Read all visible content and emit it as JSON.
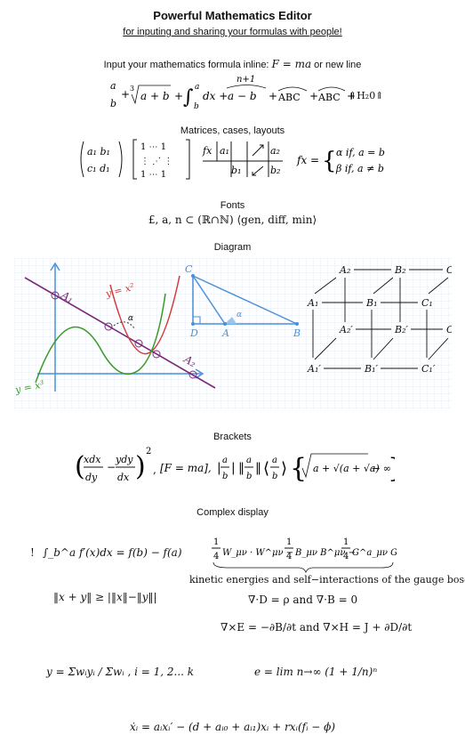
{
  "header": {
    "title": "Powerful Mathematics Editor",
    "subtitle": "for inputing and sharing your formulas with people!"
  },
  "inline": {
    "label": "Input your mathematics formula inline:",
    "tail": "or new line"
  },
  "sections": {
    "matrices": "Matrices, cases, layouts",
    "fonts": "Fonts",
    "diagram": "Diagram",
    "brackets": "Brackets",
    "complex": "Complex display"
  },
  "formulas": {
    "inline_formula": "F = ma",
    "row1": "a/b + ∛(a+b) + ∫_b^a dx + (a − b, n+1) + ABC + ABC + ⇑H₂0⇑",
    "fonts_line": "£, a, n ⊂ (ℝ∩ℕ) ⟨gen, diff, min⟩",
    "brackets_line": "(xdx/dy − ydy/dx)², [F = ma], |a/b| ‖a/b‖ ⟨a/b⟩ {√(a+√(a+√a)) → ∞}",
    "complex": {
      "bang": "!",
      "integral": "∫_b^a f′(x)dx = f(b) − f(a)",
      "gauge_caption": "kinetic energies and self−interactions of the gauge bosons",
      "triangle": "‖x + y‖ ≥ |‖x‖−‖y‖|",
      "div_line": "∇·D = ρ and ∇·B = 0",
      "curl_line": "∇×E = −∂B/∂t and ∇×H = J + ∂D/∂t",
      "weighted_mean": "y = Σwᵢyᵢ / Σwᵢ , i = 1, 2... k",
      "euler": "e = lim n→∞ (1 + 1/n)ⁿ",
      "ode": "ẋᵢ = aᵢxᵢ′ − (d + aᵢ₀ + aᵢ₁)xᵢ + rxᵢ(fᵢ − ϕ)"
    }
  },
  "diagram_labels": {
    "A1": "A₁",
    "A2": "A₂",
    "y_x2": "y = x²",
    "y_x3": "y = x³",
    "alpha": "α",
    "C": "C",
    "D": "D",
    "A": "A",
    "B": "B",
    "cube": [
      "A₂",
      "B₂",
      "C",
      "A₁",
      "B₁",
      "C₁",
      "C",
      "A₂′",
      "B₂′",
      "A₁′",
      "B₁′",
      "C₁′"
    ]
  },
  "colors": {
    "accent": "#4a90d9",
    "red": "#d23b3b",
    "green": "#3a9a2a",
    "purple": "#7a2a7a",
    "grid": "#dde7f3"
  }
}
